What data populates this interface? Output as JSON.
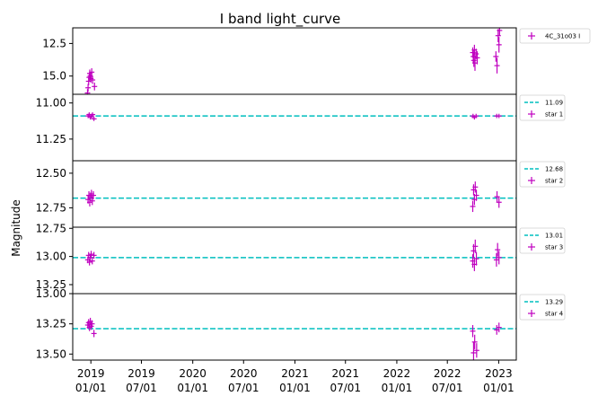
{
  "chart_data": {
    "type": "scatter",
    "title": "I band light_curve",
    "ylabel": "Magnitude",
    "x_ticks": [
      "2019\n01/01",
      "2019\n07/01",
      "2020\n01/01",
      "2020\n07/01",
      "2021\n01/01",
      "2021\n07/01",
      "2022\n01/01",
      "2022\n07/01",
      "2023\n01/01"
    ],
    "xlim": [
      "2018-10-28",
      "2023-03-05"
    ],
    "marker_color": "#bf00bf",
    "reference_line_color": "#00bfbf",
    "panels": [
      {
        "name": "4C_31o03 I",
        "ylim": [
          16.4,
          11.3
        ],
        "y_inverted": true,
        "yticks": [
          "12.5",
          "15.0"
        ],
        "ytick_values": [
          12.5,
          15.0
        ],
        "reference_value": null,
        "points": [
          {
            "x": "2018-12-20",
            "y": 16.3,
            "err": 0.3
          },
          {
            "x": "2018-12-22",
            "y": 15.9,
            "err": 0.3
          },
          {
            "x": "2018-12-24",
            "y": 15.4,
            "err": 0.3
          },
          {
            "x": "2018-12-26",
            "y": 15.1,
            "err": 0.3
          },
          {
            "x": "2018-12-28",
            "y": 14.8,
            "err": 0.3
          },
          {
            "x": "2018-12-30",
            "y": 15.0,
            "err": 0.3
          },
          {
            "x": "2019-01-01",
            "y": 15.2,
            "err": 0.3
          },
          {
            "x": "2019-01-04",
            "y": 14.7,
            "err": 0.3
          },
          {
            "x": "2019-01-07",
            "y": 15.3,
            "err": 0.3
          },
          {
            "x": "2019-01-14",
            "y": 15.8,
            "err": 0.3
          },
          {
            "x": "2022-09-30",
            "y": 13.2,
            "err": 0.4
          },
          {
            "x": "2022-10-02",
            "y": 13.5,
            "err": 0.5
          },
          {
            "x": "2022-10-04",
            "y": 13.8,
            "err": 0.5
          },
          {
            "x": "2022-10-06",
            "y": 13.0,
            "err": 0.4
          },
          {
            "x": "2022-10-08",
            "y": 14.0,
            "err": 0.6
          },
          {
            "x": "2022-10-12",
            "y": 13.3,
            "err": 0.4
          },
          {
            "x": "2022-10-16",
            "y": 13.6,
            "err": 0.5
          },
          {
            "x": "2022-12-22",
            "y": 13.5,
            "err": 0.4
          },
          {
            "x": "2022-12-26",
            "y": 14.2,
            "err": 0.6
          },
          {
            "x": "2022-12-30",
            "y": 11.9,
            "err": 0.5
          },
          {
            "x": "2023-01-02",
            "y": 12.6,
            "err": 0.6
          },
          {
            "x": "2023-01-04",
            "y": 11.5,
            "err": 0.4
          }
        ]
      },
      {
        "name": "star 1",
        "ylim": [
          11.4,
          10.94
        ],
        "y_inverted": true,
        "yticks": [
          "11.00",
          "11.25"
        ],
        "ytick_values": [
          11.0,
          11.25
        ],
        "reference_value": 11.09,
        "reference_label": "11.09",
        "points": [
          {
            "x": "2018-12-22",
            "y": 11.09,
            "err": 0.015
          },
          {
            "x": "2018-12-26",
            "y": 11.08,
            "err": 0.015
          },
          {
            "x": "2018-12-30",
            "y": 11.1,
            "err": 0.015
          },
          {
            "x": "2019-01-03",
            "y": 11.09,
            "err": 0.015
          },
          {
            "x": "2019-01-07",
            "y": 11.08,
            "err": 0.015
          },
          {
            "x": "2019-01-12",
            "y": 11.11,
            "err": 0.015
          },
          {
            "x": "2022-10-01",
            "y": 11.09,
            "err": 0.015
          },
          {
            "x": "2022-10-06",
            "y": 11.1,
            "err": 0.015
          },
          {
            "x": "2022-10-12",
            "y": 11.09,
            "err": 0.015
          },
          {
            "x": "2022-12-25",
            "y": 11.09,
            "err": 0.015
          },
          {
            "x": "2023-01-02",
            "y": 11.09,
            "err": 0.015
          }
        ]
      },
      {
        "name": "star 2",
        "ylim": [
          12.89,
          12.41
        ],
        "y_inverted": true,
        "yticks": [
          "12.50",
          "12.75"
        ],
        "ytick_values": [
          12.5,
          12.75
        ],
        "reference_value": 12.68,
        "reference_label": "12.68",
        "points": [
          {
            "x": "2018-12-22",
            "y": 12.69,
            "err": 0.03
          },
          {
            "x": "2018-12-25",
            "y": 12.66,
            "err": 0.03
          },
          {
            "x": "2018-12-28",
            "y": 12.71,
            "err": 0.03
          },
          {
            "x": "2018-12-31",
            "y": 12.67,
            "err": 0.03
          },
          {
            "x": "2019-01-03",
            "y": 12.65,
            "err": 0.03
          },
          {
            "x": "2019-01-06",
            "y": 12.7,
            "err": 0.03
          },
          {
            "x": "2019-01-10",
            "y": 12.66,
            "err": 0.03
          },
          {
            "x": "2022-09-30",
            "y": 12.74,
            "err": 0.04
          },
          {
            "x": "2022-10-03",
            "y": 12.62,
            "err": 0.04
          },
          {
            "x": "2022-10-06",
            "y": 12.69,
            "err": 0.04
          },
          {
            "x": "2022-10-09",
            "y": 12.6,
            "err": 0.04
          },
          {
            "x": "2022-10-13",
            "y": 12.66,
            "err": 0.04
          },
          {
            "x": "2022-12-26",
            "y": 12.67,
            "err": 0.04
          },
          {
            "x": "2023-01-02",
            "y": 12.71,
            "err": 0.04
          }
        ]
      },
      {
        "name": "star 3",
        "ylim": [
          13.33,
          12.74
        ],
        "y_inverted": true,
        "yticks": [
          "12.75",
          "13.00",
          "13.25"
        ],
        "ytick_values": [
          12.75,
          13.0,
          13.25
        ],
        "reference_value": 13.01,
        "reference_label": "13.01",
        "points": [
          {
            "x": "2018-12-21",
            "y": 13.03,
            "err": 0.03
          },
          {
            "x": "2018-12-24",
            "y": 12.99,
            "err": 0.03
          },
          {
            "x": "2018-12-27",
            "y": 13.05,
            "err": 0.03
          },
          {
            "x": "2018-12-30",
            "y": 13.01,
            "err": 0.03
          },
          {
            "x": "2019-01-02",
            "y": 12.98,
            "err": 0.03
          },
          {
            "x": "2019-01-06",
            "y": 13.04,
            "err": 0.03
          },
          {
            "x": "2019-01-12",
            "y": 12.99,
            "err": 0.03
          },
          {
            "x": "2022-09-30",
            "y": 13.04,
            "err": 0.06
          },
          {
            "x": "2022-10-03",
            "y": 12.95,
            "err": 0.06
          },
          {
            "x": "2022-10-06",
            "y": 13.07,
            "err": 0.06
          },
          {
            "x": "2022-10-09",
            "y": 12.91,
            "err": 0.06
          },
          {
            "x": "2022-10-13",
            "y": 13.02,
            "err": 0.06
          },
          {
            "x": "2022-12-24",
            "y": 13.03,
            "err": 0.06
          },
          {
            "x": "2022-12-28",
            "y": 12.94,
            "err": 0.06
          },
          {
            "x": "2023-01-02",
            "y": 13.01,
            "err": 0.06
          }
        ]
      },
      {
        "name": "star 4",
        "ylim": [
          13.55,
          13.0
        ],
        "y_inverted": true,
        "yticks": [
          "13.00",
          "13.25",
          "13.50"
        ],
        "ytick_values": [
          13.0,
          13.25,
          13.5
        ],
        "reference_value": 13.29,
        "reference_label": "13.29",
        "points": [
          {
            "x": "2018-12-21",
            "y": 13.26,
            "err": 0.03
          },
          {
            "x": "2018-12-24",
            "y": 13.24,
            "err": 0.03
          },
          {
            "x": "2018-12-27",
            "y": 13.28,
            "err": 0.03
          },
          {
            "x": "2018-12-30",
            "y": 13.23,
            "err": 0.03
          },
          {
            "x": "2019-01-02",
            "y": 13.27,
            "err": 0.03
          },
          {
            "x": "2019-01-05",
            "y": 13.25,
            "err": 0.03
          },
          {
            "x": "2019-01-12",
            "y": 13.33,
            "err": 0.03
          },
          {
            "x": "2022-09-30",
            "y": 13.31,
            "err": 0.05
          },
          {
            "x": "2022-10-03",
            "y": 13.49,
            "err": 0.09
          },
          {
            "x": "2022-10-07",
            "y": 13.4,
            "err": 0.06
          },
          {
            "x": "2022-10-14",
            "y": 13.47,
            "err": 0.06
          },
          {
            "x": "2022-12-25",
            "y": 13.3,
            "err": 0.04
          },
          {
            "x": "2023-01-02",
            "y": 13.28,
            "err": 0.04
          }
        ]
      }
    ]
  }
}
